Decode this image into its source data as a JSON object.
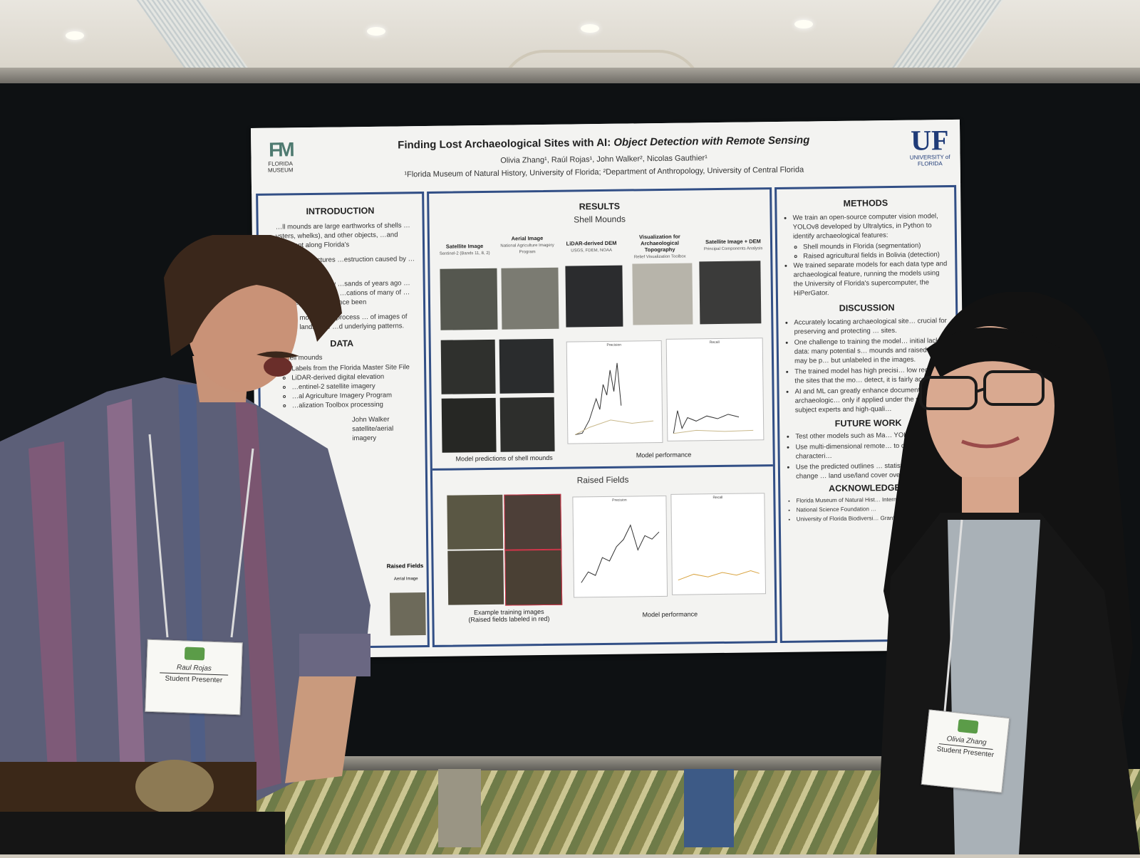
{
  "poster": {
    "title_a": "Finding Lost Archaeological Sites with AI: ",
    "title_b": "Object Detection with Remote Sensing",
    "authors": "Olivia Zhang¹, Raúl Rojas¹, John Walker², Nicolas Gauthier¹",
    "affiliations": "¹Florida Museum of Natural History, University of Florida; ²Department of Anthropology, University of Central Florida",
    "logo_left": {
      "mark": "FM",
      "line1": "FLORIDA",
      "line2": "MUSEUM"
    },
    "logo_right": {
      "mark": "UF",
      "line1": "UNIVERSITY of",
      "line2": "FLORIDA"
    },
    "introduction": {
      "heading": "INTRODUCTION",
      "paragraphs": [
        "…ll mounds are large earthworks of shells …ysters, whelks), and other objects, …and prevalent along Florida's",
        "…formed structures …estruction caused by …the Bolivian wet",
        "…nique look at how …sands of years ago …atural environments. …cations of many of …whether they have since been",
        "…ction models can process … of images of Earth's landscape …d underlying patterns."
      ]
    },
    "data": {
      "heading": "DATA",
      "item": "Shell mounds",
      "subitems": [
        "Labels from the Florida Master Site File",
        "LiDAR-derived digital elevation",
        "…entinel-2 satellite imagery",
        "…al Agriculture Imagery Program",
        "…alization Toolbox processing"
      ],
      "more": [
        "John Walker",
        "satellite/aerial imagery"
      ],
      "raised_fields_label": "Raised Fields",
      "aerial_label": "Aerial Image"
    },
    "results": {
      "heading": "RESULTS",
      "shell_heading": "Shell Mounds",
      "image_types": [
        {
          "label": "Satellite Image",
          "source": "Sentinel-2 (Bands 11, 8, 2)"
        },
        {
          "label": "Aerial Image",
          "source": "National Agriculture Imagery Program"
        },
        {
          "label": "LiDAR-derived DEM",
          "source": "USGS, FDEM, NOAA"
        },
        {
          "label": "Visualization for Archaeological Topography",
          "source": "Relief Visualization Toolbox"
        },
        {
          "label": "Satellite Image + DEM",
          "source": "Principal Components Analysis"
        }
      ],
      "precision_label": "Precision",
      "recall_label": "Recall",
      "caption_predictions": "Model predictions of shell mounds",
      "caption_performance": "Model performance",
      "raised_heading": "Raised Fields",
      "caption_training_1": "Example training images",
      "caption_training_2": "(Raised fields labeled in red)",
      "caption_performance_2": "Model performance"
    },
    "methods": {
      "heading": "METHODS",
      "items": [
        "We train an open-source computer vision model, YOLOv8 developed by Ultralytics, in Python to identify archaeological features:",
        "We trained separate models for each data type and archaeological feature, running the models using the University of Florida's supercomputer, the HiPerGator."
      ],
      "subitems": [
        "Shell mounds in Florida (segmentation)",
        "Raised agricultural fields in Bolivia (detection)"
      ]
    },
    "discussion": {
      "heading": "DISCUSSION",
      "items": [
        "Accurately locating archaeological site… crucial for preserving and protecting … sites.",
        "One challenge to training the model… initial lack of data: many potential s… mounds and raised fields may be p… but unlabeled in the images.",
        "The trained model has high precisi… low recall (of the sites that the mo… detect, it is fairly accurate).",
        "AI and ML can greatly enhance documentation of archaeologic… only if applied under the super… subject experts and high-quali…"
      ]
    },
    "future_work": {
      "heading": "FUTURE WORK",
      "items": [
        "Test other models such as Ma… YOLOv11.",
        "Use multi-dimensional remote… to capture unique characteri…",
        "Use the predicted outlines … statistics such as change … land use/land cover over t…"
      ]
    },
    "acknowledgements": {
      "heading": "ACKNOWLEDGE…",
      "items": [
        "Florida Museum of Natural Hist… Internship Program",
        "National Science Foundation …",
        "University of Florida Biodiversi… Grant, 2024"
      ]
    }
  },
  "badges": {
    "left": {
      "name": "Raul Rojas",
      "role": "Student Presenter"
    },
    "right": {
      "name": "Olivia Zhang",
      "role": "Student Presenter"
    }
  },
  "colors": {
    "poster_border": "#324f86",
    "board": "#0e1113",
    "fm_green": "#4e7a70",
    "uf_blue": "#1f3b78",
    "label_red": "#d8344a"
  }
}
